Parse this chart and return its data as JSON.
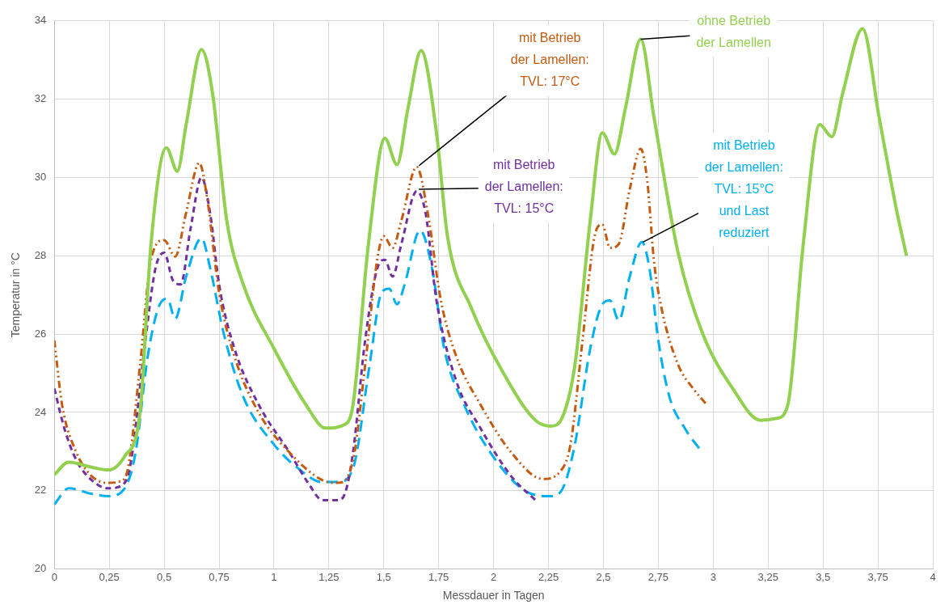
{
  "chart_data": {
    "type": "line",
    "xlabel": "Messdauer in Tagen",
    "ylabel": "Temperatur in °C",
    "xlim": [
      0,
      4
    ],
    "xticks": [
      0,
      {
        "value": 0.25,
        "label": "0,25"
      },
      {
        "value": 0.5,
        "label": "0,5"
      },
      {
        "value": 0.75,
        "label": "0,75"
      },
      1,
      {
        "value": 1.25,
        "label": "1,25"
      },
      {
        "value": 1.5,
        "label": "1,5"
      },
      {
        "value": 1.75,
        "label": "1,75"
      },
      2,
      {
        "value": 2.25,
        "label": "2,25"
      },
      {
        "value": 2.5,
        "label": "2,5"
      },
      {
        "value": 2.75,
        "label": "2,75"
      },
      3,
      {
        "value": 3.25,
        "label": "3,25"
      },
      {
        "value": 3.5,
        "label": "3,5"
      },
      {
        "value": 3.75,
        "label": "3,75"
      },
      4
    ],
    "ylim": [
      20,
      34
    ],
    "yticks": [
      20,
      22,
      24,
      26,
      28,
      30,
      32,
      34
    ],
    "grid": true,
    "series": [
      {
        "color": "#92d050",
        "line_style": "solid",
        "x": [
          0,
          0.065,
          0.17,
          0.245,
          0.32,
          0.39,
          0.44,
          0.51,
          0.56,
          0.6,
          0.67,
          0.72,
          0.785,
          0.86,
          1.0,
          1.145,
          1.235,
          1.325,
          1.36,
          1.43,
          1.505,
          1.56,
          1.61,
          1.67,
          1.74,
          1.79,
          1.9,
          2.045,
          2.19,
          2.26,
          2.315,
          2.37,
          2.44,
          2.495,
          2.55,
          2.6,
          2.67,
          2.73,
          2.84,
          2.95,
          3.09,
          3.215,
          3.29,
          3.34,
          3.41,
          3.485,
          3.54,
          3.59,
          3.68,
          3.755,
          3.83,
          3.88
        ],
        "values": [
          22.41,
          22.73,
          22.6,
          22.53,
          22.88,
          24.0,
          28.3,
          30.76,
          30.16,
          31.35,
          33.27,
          32.16,
          28.9,
          27.27,
          25.63,
          24.2,
          23.6,
          23.7,
          24.2,
          28.3,
          31.0,
          30.33,
          31.76,
          33.24,
          31.14,
          28.5,
          26.65,
          25.0,
          23.8,
          23.65,
          23.9,
          25.2,
          28.9,
          31.14,
          30.6,
          31.76,
          33.53,
          31.55,
          28.08,
          26.04,
          24.6,
          23.8,
          23.85,
          24.2,
          28.3,
          31.35,
          31.04,
          32.16,
          33.8,
          31.55,
          29.3,
          28.0
        ]
      },
      {
        "color": "#c55a11",
        "line_style": "dotted",
        "x": [
          0,
          0.035,
          0.1,
          0.17,
          0.245,
          0.3,
          0.335,
          0.39,
          0.44,
          0.5,
          0.55,
          0.6,
          0.66,
          0.695,
          0.75,
          0.82,
          0.93,
          1.07,
          1.22,
          1.29,
          1.36,
          1.415,
          1.47,
          1.5,
          1.54,
          1.58,
          1.65,
          1.7,
          1.76,
          1.83,
          1.94,
          2.08,
          2.225,
          2.3,
          2.35,
          2.405,
          2.46,
          2.495,
          2.53,
          2.57,
          2.62,
          2.67,
          2.7,
          2.73,
          2.765,
          2.84,
          2.91,
          2.97
        ],
        "values": [
          25.84,
          24.2,
          22.98,
          22.37,
          22.2,
          22.24,
          22.57,
          25.2,
          27.9,
          28.4,
          27.98,
          29.1,
          30.37,
          29.5,
          27.06,
          25.43,
          24.0,
          22.98,
          22.27,
          22.2,
          22.78,
          25.2,
          27.9,
          28.5,
          28.2,
          28.9,
          30.27,
          29.1,
          26.86,
          25.43,
          24.2,
          22.98,
          22.3,
          22.47,
          23.18,
          25.84,
          28.5,
          28.8,
          28.2,
          28.3,
          29.7,
          30.73,
          29.9,
          27.88,
          26.65,
          25.22,
          24.6,
          24.2
        ]
      },
      {
        "color": "#7030a0",
        "line_style": "dashed",
        "x": [
          0,
          0.045,
          0.1,
          0.17,
          0.245,
          0.32,
          0.35,
          0.41,
          0.46,
          0.5,
          0.54,
          0.575,
          0.62,
          0.67,
          0.71,
          0.75,
          0.82,
          0.93,
          1.07,
          1.16,
          1.22,
          1.29,
          1.325,
          1.36,
          1.415,
          1.47,
          1.505,
          1.54,
          1.58,
          1.65,
          1.69,
          1.74,
          1.83,
          1.94,
          2.08,
          2.19
        ],
        "values": [
          24.61,
          23.6,
          22.78,
          22.27,
          22.06,
          22.2,
          22.78,
          25.63,
          27.67,
          28.08,
          27.37,
          27.27,
          28.69,
          30.0,
          29.06,
          27.27,
          25.63,
          24.2,
          22.98,
          22.16,
          21.76,
          21.76,
          21.96,
          22.98,
          25.84,
          27.67,
          27.9,
          27.47,
          28.3,
          29.65,
          29.1,
          26.86,
          24.8,
          23.6,
          22.37,
          21.76
        ]
      },
      {
        "color": "#00b0f0",
        "line_style": "dashed",
        "x": [
          0,
          0.065,
          0.17,
          0.245,
          0.32,
          0.37,
          0.425,
          0.48,
          0.515,
          0.55,
          0.6,
          0.67,
          0.71,
          0.77,
          0.86,
          1.0,
          1.11,
          1.22,
          1.29,
          1.36,
          1.435,
          1.49,
          1.525,
          1.56,
          1.595,
          1.665,
          1.72,
          1.775,
          1.865,
          2.01,
          2.155,
          2.26,
          2.315,
          2.37,
          2.44,
          2.495,
          2.53,
          2.57,
          2.62,
          2.675,
          2.71,
          2.75,
          2.8,
          2.87,
          2.95
        ],
        "values": [
          21.65,
          22.06,
          21.92,
          21.86,
          22.06,
          22.98,
          25.43,
          26.76,
          26.9,
          26.39,
          27.47,
          28.45,
          27.67,
          26.04,
          24.4,
          23.18,
          22.57,
          22.22,
          22.22,
          22.57,
          25.2,
          27.06,
          27.16,
          26.76,
          27.27,
          28.65,
          27.67,
          25.63,
          24.2,
          22.78,
          21.96,
          21.86,
          22.06,
          23.18,
          25.63,
          26.76,
          26.86,
          26.35,
          27.47,
          28.35,
          27.67,
          25.84,
          24.41,
          23.6,
          22.98
        ]
      }
    ],
    "annotations": [
      {
        "text": "ohne Betrieb\nder Lamellen",
        "x": 2.67,
        "y": 33.53
      },
      {
        "text": "mit Betrieb\nder Lamellen:\nTVL: 17°C",
        "x": 1.66,
        "y": 30.3
      },
      {
        "text": "mit Betrieb\nder Lamellen:\nTVL: 15°C",
        "x": 1.66,
        "y": 29.7
      },
      {
        "text": "mit Betrieb\nder Lamellen:\nTVL: 15°C\nund Last\nreduziert",
        "x": 2.68,
        "y": 28.35
      }
    ]
  }
}
